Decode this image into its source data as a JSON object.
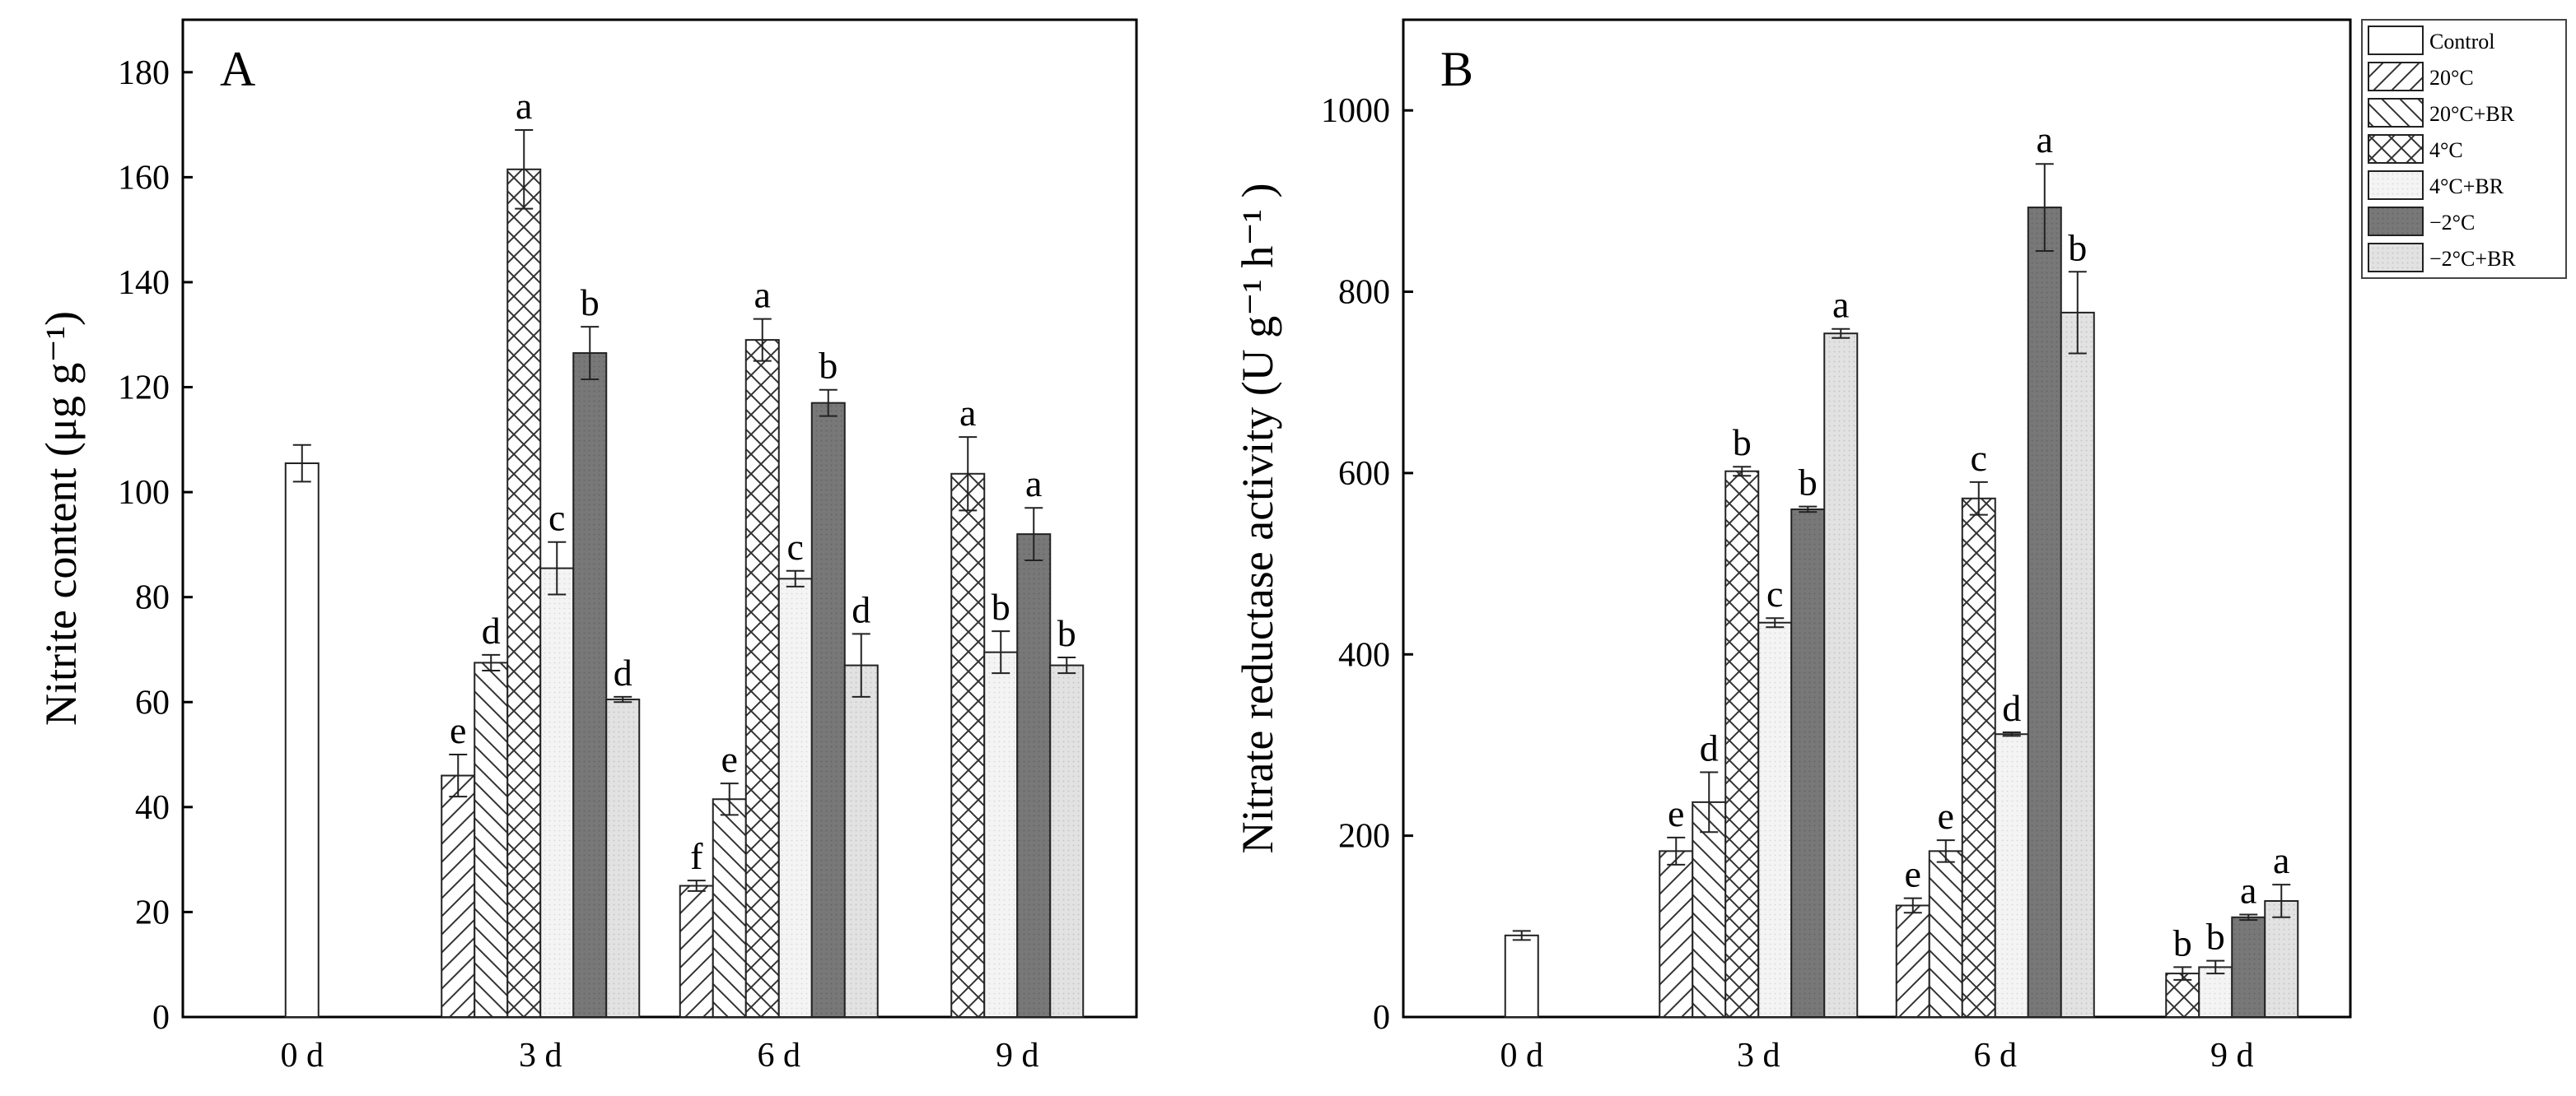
{
  "chart_data": [
    {
      "type": "bar",
      "panel_label": "A",
      "ylabel": "Nitrite content (μg g⁻¹)",
      "xlabel": "",
      "categories": [
        "0 d",
        "3 d",
        "6 d",
        "9 d"
      ],
      "ylim": [
        0,
        190
      ],
      "yticks": [
        0,
        20,
        40,
        60,
        80,
        100,
        120,
        140,
        160,
        180
      ],
      "grid": false,
      "series": [
        {
          "name": "Control",
          "values": [
            105.5,
            null,
            null,
            null
          ],
          "errors": [
            3.5,
            null,
            null,
            null
          ],
          "labels": [
            "",
            "",
            "",
            ""
          ]
        },
        {
          "name": "20°C",
          "values": [
            null,
            46,
            25,
            null
          ],
          "errors": [
            null,
            4,
            1,
            null
          ],
          "labels": [
            "",
            "e",
            "f",
            ""
          ]
        },
        {
          "name": "20°C+BR",
          "values": [
            null,
            67.5,
            41.5,
            null
          ],
          "errors": [
            null,
            1.5,
            3,
            null
          ],
          "labels": [
            "",
            "d",
            "e",
            ""
          ]
        },
        {
          "name": "4°C",
          "values": [
            null,
            161.5,
            129,
            103.5
          ],
          "errors": [
            null,
            7.5,
            4,
            7
          ],
          "labels": [
            "",
            "a",
            "a",
            "a"
          ]
        },
        {
          "name": "4°C+BR",
          "values": [
            null,
            85.5,
            83.5,
            69.5
          ],
          "errors": [
            null,
            5,
            1.5,
            4
          ],
          "labels": [
            "",
            "c",
            "c",
            "b"
          ]
        },
        {
          "name": "−2°C",
          "values": [
            null,
            126.5,
            117,
            92
          ],
          "errors": [
            null,
            5,
            2.5,
            5
          ],
          "labels": [
            "",
            "b",
            "b",
            "a"
          ]
        },
        {
          "name": "−2°C+BR",
          "values": [
            null,
            60.5,
            67,
            67
          ],
          "errors": [
            null,
            0.5,
            6,
            1.5
          ],
          "labels": [
            "",
            "d",
            "d",
            "b"
          ]
        }
      ]
    },
    {
      "type": "bar",
      "panel_label": "B",
      "ylabel": "Nitrate reductase activity (U g⁻¹ h⁻¹ )",
      "xlabel": "",
      "categories": [
        "0 d",
        "3 d",
        "6 d",
        "9 d"
      ],
      "ylim": [
        0,
        1100
      ],
      "yticks": [
        0,
        200,
        400,
        600,
        800,
        1000
      ],
      "grid": false,
      "series": [
        {
          "name": "Control",
          "values": [
            90,
            null,
            null,
            null
          ],
          "errors": [
            5,
            null,
            null,
            null
          ],
          "labels": [
            "",
            "",
            "",
            ""
          ]
        },
        {
          "name": "20°C",
          "values": [
            null,
            183,
            123,
            null
          ],
          "errors": [
            null,
            15,
            8,
            null
          ],
          "labels": [
            "",
            "e",
            "e",
            ""
          ]
        },
        {
          "name": "20°C+BR",
          "values": [
            null,
            237,
            183,
            null
          ],
          "errors": [
            null,
            33,
            12,
            null
          ],
          "labels": [
            "",
            "d",
            "e",
            ""
          ]
        },
        {
          "name": "4°C",
          "values": [
            null,
            602,
            572,
            48
          ],
          "errors": [
            null,
            5,
            18,
            7
          ],
          "labels": [
            "",
            "b",
            "c",
            "b"
          ]
        },
        {
          "name": "4°C+BR",
          "values": [
            null,
            435,
            312,
            55
          ],
          "errors": [
            null,
            5,
            2,
            7
          ],
          "labels": [
            "",
            "c",
            "d",
            "b"
          ]
        },
        {
          "name": "−2°C",
          "values": [
            null,
            560,
            893,
            110
          ],
          "errors": [
            null,
            3,
            48,
            3
          ],
          "labels": [
            "",
            "b",
            "a",
            "a"
          ]
        },
        {
          "name": "−2°C+BR",
          "values": [
            null,
            754,
            777,
            128
          ],
          "errors": [
            null,
            5,
            45,
            18
          ],
          "labels": [
            "",
            "a",
            "b",
            "a"
          ]
        }
      ]
    }
  ],
  "legend": {
    "placement": "top-right",
    "entries": [
      "Control",
      "20°C",
      "20°C+BR",
      "4°C",
      "4°C+BR",
      "−2°C",
      "−2°C+BR"
    ]
  }
}
